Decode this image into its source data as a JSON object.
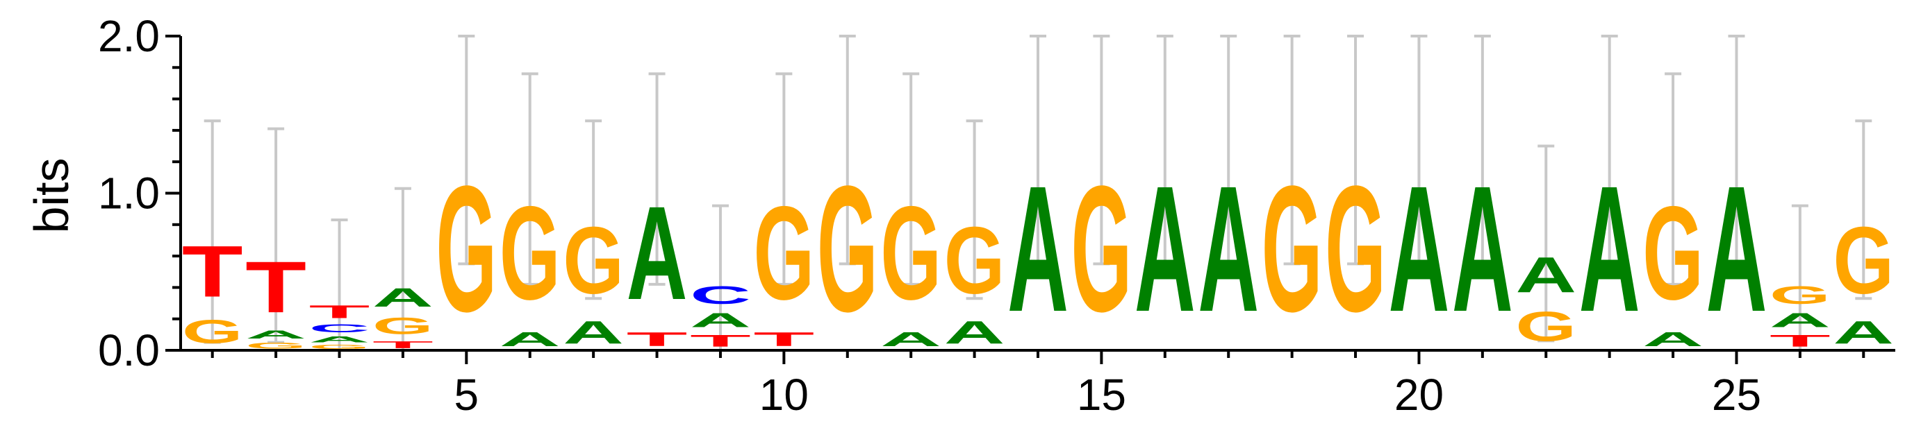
{
  "chart_data": {
    "type": "sequence-logo",
    "ylabel": "bits",
    "ylim": [
      0,
      2
    ],
    "yticks": [
      0,
      1,
      2
    ],
    "ytick_labels": [
      "0.0",
      "1.0",
      "2.0"
    ],
    "xlim": [
      0.5,
      27.5
    ],
    "xticks": [
      5,
      10,
      15,
      20,
      25
    ],
    "xtick_labels": [
      "5",
      "10",
      "15",
      "20",
      "25"
    ],
    "colors": {
      "A": "#008000",
      "C": "#0000ff",
      "G": "#ffa500",
      "T": "#ff0000",
      "error_bar": "#c8c8c8"
    },
    "positions": [
      {
        "pos": 1,
        "error": [
          0.05,
          1.46
        ],
        "stack": [
          [
            "G",
            0.24
          ],
          [
            "T",
            0.52
          ]
        ]
      },
      {
        "pos": 2,
        "error": [
          0.05,
          1.41
        ],
        "stack": [
          [
            "G",
            0.06
          ],
          [
            "A",
            0.08
          ],
          [
            "T",
            0.52
          ]
        ]
      },
      {
        "pos": 3,
        "error": [
          0.0,
          0.83
        ],
        "stack": [
          [
            "G",
            0.04
          ],
          [
            "A",
            0.06
          ],
          [
            "C",
            0.08
          ],
          [
            "T",
            0.13
          ]
        ]
      },
      {
        "pos": 4,
        "error": [
          0.0,
          1.03
        ],
        "stack": [
          [
            "T",
            0.07
          ],
          [
            "G",
            0.17
          ],
          [
            "A",
            0.19
          ]
        ]
      },
      {
        "pos": 5,
        "error": [
          0.55,
          2.0
        ],
        "stack": [
          [
            "G",
            1.28
          ]
        ]
      },
      {
        "pos": 6,
        "error": [
          0.42,
          1.76
        ],
        "stack": [
          [
            "A",
            0.14
          ],
          [
            "G",
            0.95
          ]
        ]
      },
      {
        "pos": 7,
        "error": [
          0.33,
          1.46
        ],
        "stack": [
          [
            "A",
            0.23
          ],
          [
            "G",
            0.68
          ]
        ]
      },
      {
        "pos": 8,
        "error": [
          0.42,
          1.76
        ],
        "stack": [
          [
            "T",
            0.14
          ],
          [
            "A",
            0.95
          ]
        ]
      },
      {
        "pos": 9,
        "error": [
          0.0,
          0.92
        ],
        "stack": [
          [
            "T",
            0.12
          ],
          [
            "A",
            0.14
          ],
          [
            "C",
            0.18
          ]
        ]
      },
      {
        "pos": 10,
        "error": [
          0.42,
          1.76
        ],
        "stack": [
          [
            "T",
            0.14
          ],
          [
            "G",
            0.95
          ]
        ]
      },
      {
        "pos": 11,
        "error": [
          0.55,
          2.0
        ],
        "stack": [
          [
            "G",
            1.28
          ]
        ]
      },
      {
        "pos": 12,
        "error": [
          0.42,
          1.76
        ],
        "stack": [
          [
            "A",
            0.14
          ],
          [
            "G",
            0.95
          ]
        ]
      },
      {
        "pos": 13,
        "error": [
          0.33,
          1.46
        ],
        "stack": [
          [
            "A",
            0.23
          ],
          [
            "G",
            0.68
          ]
        ]
      },
      {
        "pos": 14,
        "error": [
          0.55,
          2.0
        ],
        "stack": [
          [
            "A",
            1.28
          ]
        ]
      },
      {
        "pos": 15,
        "error": [
          0.55,
          2.0
        ],
        "stack": [
          [
            "G",
            1.28
          ]
        ]
      },
      {
        "pos": 16,
        "error": [
          0.55,
          2.0
        ],
        "stack": [
          [
            "A",
            1.28
          ]
        ]
      },
      {
        "pos": 17,
        "error": [
          0.55,
          2.0
        ],
        "stack": [
          [
            "A",
            1.28
          ]
        ]
      },
      {
        "pos": 18,
        "error": [
          0.55,
          2.0
        ],
        "stack": [
          [
            "G",
            1.28
          ]
        ]
      },
      {
        "pos": 19,
        "error": [
          0.55,
          2.0
        ],
        "stack": [
          [
            "G",
            1.28
          ]
        ]
      },
      {
        "pos": 20,
        "error": [
          0.55,
          2.0
        ],
        "stack": [
          [
            "A",
            1.28
          ]
        ]
      },
      {
        "pos": 21,
        "error": [
          0.55,
          2.0
        ],
        "stack": [
          [
            "A",
            1.28
          ]
        ]
      },
      {
        "pos": 22,
        "error": [
          0.06,
          1.3
        ],
        "stack": [
          [
            "G",
            0.3
          ],
          [
            "A",
            0.36
          ]
        ]
      },
      {
        "pos": 23,
        "error": [
          0.55,
          2.0
        ],
        "stack": [
          [
            "A",
            1.28
          ]
        ]
      },
      {
        "pos": 24,
        "error": [
          0.42,
          1.76
        ],
        "stack": [
          [
            "A",
            0.14
          ],
          [
            "G",
            0.95
          ]
        ]
      },
      {
        "pos": 25,
        "error": [
          0.55,
          2.0
        ],
        "stack": [
          [
            "A",
            1.28
          ]
        ]
      },
      {
        "pos": 26,
        "error": [
          0.0,
          0.92
        ],
        "stack": [
          [
            "T",
            0.12
          ],
          [
            "A",
            0.14
          ],
          [
            "G",
            0.18
          ]
        ]
      },
      {
        "pos": 27,
        "error": [
          0.33,
          1.46
        ],
        "stack": [
          [
            "A",
            0.23
          ],
          [
            "G",
            0.68
          ]
        ]
      }
    ]
  }
}
